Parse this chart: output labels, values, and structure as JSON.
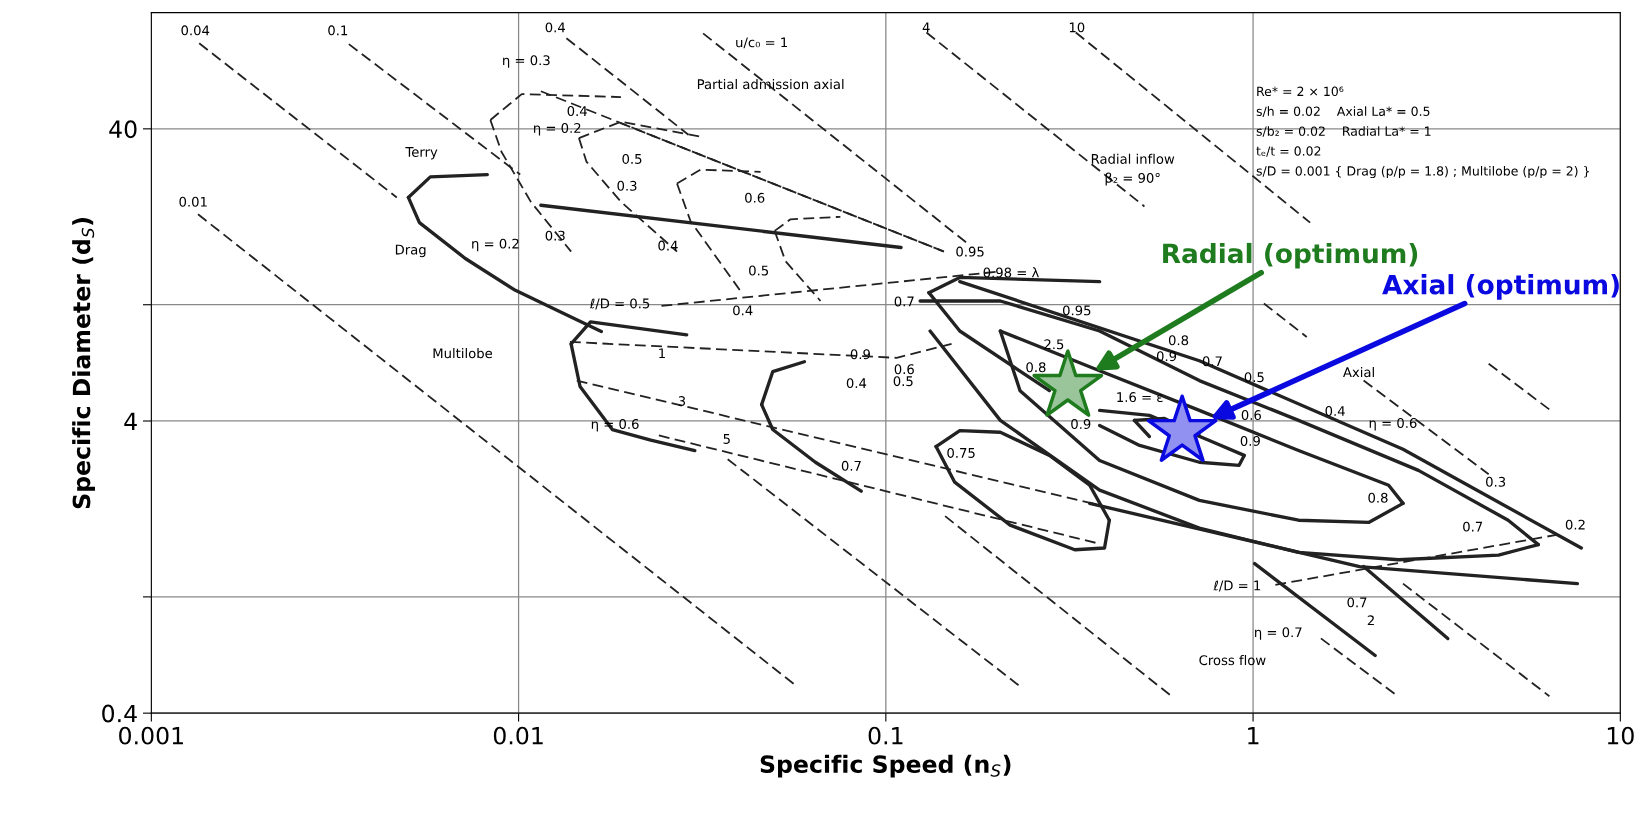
{
  "chart_data": {
    "type": "line",
    "xlabel": "Specific Speed (n$_{S}$)",
    "ylabel": "Specific Diameter (d$_{S}$)",
    "log": "xy",
    "xlim": [
      0.001,
      10
    ],
    "ylim": [
      0.4,
      100
    ],
    "xticks": [
      0.001,
      0.01,
      0.1,
      1,
      10
    ],
    "yticks": [
      0.4,
      {
        "value": 1,
        "label": null
      },
      4,
      {
        "value": 10,
        "label": null
      },
      40
    ],
    "grid": true,
    "legend": false,
    "series": [
      {
        "line_style": "dashed",
        "color": "#222222",
        "x": [
          0.00134,
          0.0568
        ],
        "values": [
          20.4,
          0.498
        ]
      },
      {
        "line_style": "dashed",
        "color": "#222222",
        "x": [
          0.00135,
          0.00466
        ],
        "values": [
          78.5,
          23.3
        ]
      },
      {
        "line_style": "dashed",
        "color": "#222222",
        "x": [
          0.0371,
          0.232
        ],
        "values": [
          2.96,
          0.494
        ]
      },
      {
        "line_style": "dashed",
        "color": "#222222",
        "x": [
          0.00345,
          0.0101
        ],
        "values": [
          78,
          27.9
        ]
      },
      {
        "line_style": "dashed",
        "color": "#222222",
        "x": [
          0.145,
          0.6
        ],
        "values": [
          1.89,
          0.457
        ]
      },
      {
        "line_style": "dashed",
        "color": "#222222",
        "x": [
          0.0135,
          0.029
        ],
        "values": [
          81.7,
          38.2
        ]
      },
      {
        "line_style": "dashed",
        "color": "#222222",
        "x": [
          1.53,
          2.48
        ],
        "values": [
          0.721,
          0.457
        ]
      },
      {
        "line_style": "dashed",
        "color": "#222222",
        "x": [
          0.0318,
          0.168
        ],
        "values": [
          84.9,
          16.1
        ]
      },
      {
        "line_style": "dashed",
        "color": "#222222",
        "x": [
          2.56,
          6.41
        ],
        "values": [
          1.11,
          0.457
        ]
      },
      {
        "line_style": "dashed",
        "color": "#222222",
        "x": [
          0.129,
          0.506
        ],
        "values": [
          85.5,
          21.7
        ]
      },
      {
        "line_style": "dashed",
        "color": "#222222",
        "x": [
          1.07,
          1.4
        ],
        "values": [
          10.1,
          7.76
        ]
      },
      {
        "line_style": "dashed",
        "color": "#222222",
        "x": [
          2.0,
          4.38
        ],
        "values": [
          5.5,
          2.63
        ]
      },
      {
        "line_style": "dashed",
        "color": "#222222",
        "x": [
          0.329,
          1.43
        ],
        "values": [
          85.5,
          19.1
        ]
      },
      {
        "line_style": "dashed",
        "color": "#222222",
        "x": [
          4.38,
          6.41
        ],
        "values": [
          6.28,
          4.38
        ]
      },
      {
        "line_style": "solid",
        "color": "#222222",
        "x": [
          1.01,
          2.15
        ],
        "values": [
          1.3,
          0.63
        ]
      },
      {
        "line_style": "solid",
        "color": "#222222",
        "x": [
          2.0,
          3.39
        ],
        "values": [
          1.27,
          0.72
        ]
      },
      {
        "line_style": "solid",
        "color": "#222222",
        "x": [
          0.00501,
          0.00575,
          0.00822
        ],
        "values": [
          23.3,
          27.4,
          27.9
        ]
      },
      {
        "line_style": "solid",
        "color": "#222222",
        "x": [
          0.00501,
          0.00537,
          0.00716,
          0.0098,
          0.0131,
          0.0168
        ],
        "values": [
          23.3,
          19.1,
          14.4,
          11.2,
          9.4,
          8.1
        ]
      },
      {
        "line_style": "solid",
        "color": "#222222",
        "x": [
          0.0139,
          0.0157,
          0.0287
        ],
        "values": [
          7.35,
          8.73,
          7.89
        ]
      },
      {
        "line_style": "solid",
        "color": "#222222",
        "x": [
          0.0139,
          0.0147,
          0.018,
          0.0229,
          0.0302
        ],
        "values": [
          7.35,
          5.25,
          3.74,
          3.44,
          3.17
        ]
      },
      {
        "line_style": "solid",
        "color": "#222222",
        "x": [
          0.0459,
          0.0492,
          0.06
        ],
        "values": [
          4.55,
          5.9,
          6.38
        ]
      },
      {
        "line_style": "solid",
        "color": "#222222",
        "x": [
          0.0459,
          0.0492,
          0.0643,
          0.0857
        ],
        "values": [
          4.55,
          3.74,
          2.89,
          2.3
        ]
      },
      {
        "line_style": "solid",
        "color": "#222222",
        "x": [
          0.137,
          0.159,
          0.205,
          0.279,
          0.359,
          0.406
        ],
        "values": [
          3.27,
          3.71,
          3.66,
          3.05,
          2.41,
          1.83
        ]
      },
      {
        "line_style": "solid",
        "color": "#222222",
        "x": [
          0.137,
          0.154,
          0.218,
          0.327,
          0.394,
          0.406
        ],
        "values": [
          3.27,
          2.47,
          1.76,
          1.45,
          1.47,
          1.83
        ]
      },
      {
        "line_style": "solid",
        "color": "#222222",
        "x": [
          0.124,
          0.205,
          0.382,
          0.714,
          1.33,
          2.82,
          4.95,
          5.98
        ],
        "values": [
          10.3,
          10.3,
          8.13,
          5.5,
          4.02,
          2.71,
          1.83,
          1.51
        ]
      },
      {
        "line_style": "solid",
        "color": "#222222",
        "x": [
          0.132,
          0.205,
          0.382,
          0.714,
          1.33,
          2.49,
          4.66,
          5.98
        ],
        "values": [
          8.13,
          4.02,
          2.32,
          1.72,
          1.42,
          1.34,
          1.39,
          1.51
        ]
      },
      {
        "line_style": "solid",
        "color": "#222222",
        "x": [
          0.205,
          0.382,
          0.714,
          1.33,
          2.34,
          2.56
        ],
        "values": [
          8.13,
          5.94,
          4.35,
          3.17,
          2.41,
          2.09
        ]
      },
      {
        "line_style": "solid",
        "color": "#222222",
        "x": [
          0.205,
          0.232,
          0.382,
          0.714,
          1.33,
          2.07,
          2.56
        ],
        "values": [
          8.13,
          5.08,
          2.93,
          2.14,
          1.83,
          1.8,
          2.09
        ]
      },
      {
        "line_style": "solid",
        "color": "#222222",
        "x": [
          0.382,
          0.522,
          0.76,
          0.946
        ],
        "values": [
          4.35,
          4.18,
          3.43,
          3.05
        ]
      },
      {
        "line_style": "solid",
        "color": "#222222",
        "x": [
          0.382,
          0.491,
          0.714,
          0.916,
          0.946
        ],
        "values": [
          3.86,
          3.3,
          2.89,
          2.82,
          3.05
        ]
      },
      {
        "line_style": "solid",
        "color": "#222222",
        "x": [
          0.475,
          0.574,
          0.714
        ],
        "values": [
          4.02,
          4.08,
          3.57
        ]
      },
      {
        "line_style": "solid",
        "color": "#222222",
        "x": [
          0.475,
          0.522
        ],
        "values": [
          4.02,
          3.54
        ]
      },
      {
        "line_style": "solid",
        "color": "#222222",
        "x": [
          0.159,
          0.714,
          2.56,
          7.83
        ],
        "values": [
          12.0,
          6.43,
          3.2,
          1.47
        ]
      },
      {
        "line_style": "solid",
        "color": "#222222",
        "x": [
          0.359,
          1.95,
          7.64
        ],
        "values": [
          2.09,
          1.27,
          1.11
        ]
      },
      {
        "line_style": "dashed",
        "color": "#222222",
        "x": [
          0.0115,
          0.144
        ],
        "values": [
          53.8,
          15.2
        ]
      },
      {
        "line_style": "dashed",
        "color": "#222222",
        "x": [
          0.0189,
          0.144
        ],
        "values": [
          41.9,
          15.2
        ]
      },
      {
        "line_style": "solid",
        "color": "#222222",
        "x": [
          0.0115,
          0.11
        ],
        "values": [
          21.9,
          15.7
        ]
      },
      {
        "line_style": "dashed",
        "color": "#222222",
        "x": [
          0.0245,
          0.205
        ],
        "values": [
          9.91,
          13.0
        ]
      },
      {
        "line_style": "dashed",
        "color": "#222222",
        "x": [
          0.0138,
          0.107,
          0.151
        ],
        "values": [
          7.46,
          6.58,
          7.35
        ]
      },
      {
        "line_style": "dashed",
        "color": "#222222",
        "x": [
          0.0144,
          0.382
        ],
        "values": [
          5.5,
          2.06
        ]
      },
      {
        "line_style": "dashed",
        "color": "#222222",
        "x": [
          0.0241,
          0.382
        ],
        "values": [
          3.57,
          1.52
        ]
      },
      {
        "line_style": "dashed",
        "color": "#222222",
        "x": [
          1.15,
          6.7
        ],
        "values": [
          1.1,
          1.63
        ]
      },
      {
        "line_style": "dashed",
        "color": "#222222",
        "x": [
          0.0146,
          0.019,
          0.0313
        ],
        "values": [
          37.2,
          42.3,
          37.6
        ]
      },
      {
        "line_style": "dashed",
        "color": "#222222",
        "x": [
          0.0146,
          0.0153,
          0.019,
          0.027
        ],
        "values": [
          37.2,
          30.9,
          22.5,
          15.2
        ]
      },
      {
        "line_style": "dashed",
        "color": "#222222",
        "x": [
          0.00838,
          0.0102,
          0.019
        ],
        "values": [
          42.9,
          52.6,
          51.4
        ]
      },
      {
        "line_style": "dashed",
        "color": "#222222",
        "x": [
          0.00838,
          0.00898,
          0.0108,
          0.0139
        ],
        "values": [
          42.9,
          33.4,
          22.5,
          15.2
        ]
      },
      {
        "line_style": "dashed",
        "color": "#222222",
        "x": [
          0.027,
          0.0313,
          0.0456
        ],
        "values": [
          26.0,
          29.0,
          28.5
        ]
      },
      {
        "line_style": "dashed",
        "color": "#222222",
        "x": [
          0.027,
          0.0294,
          0.0403
        ],
        "values": [
          26.0,
          19.3,
          11.1
        ]
      },
      {
        "line_style": "dashed",
        "color": "#222222",
        "x": [
          0.0498,
          0.055,
          0.0752
        ],
        "values": [
          17.9,
          19.6,
          20.0
        ]
      },
      {
        "line_style": "dashed",
        "color": "#222222",
        "x": [
          0.0498,
          0.0533,
          0.0664
        ],
        "values": [
          17.9,
          14.1,
          10.3
        ]
      },
      {
        "line_style": "solid",
        "color": "#222222",
        "x": [
          0.131,
          0.159,
          0.382
        ],
        "values": [
          11.0,
          12.4,
          12.0
        ]
      },
      {
        "line_style": "solid",
        "color": "#222222",
        "x": [
          0.131,
          0.159,
          0.279
        ],
        "values": [
          11.0,
          8.13,
          5.08
        ]
      },
      {
        "type": "scatter",
        "marker": "star",
        "name": "Radial (optimum)",
        "color": "#1e7b1e",
        "x": [
          0.313
        ],
        "values": [
          5.25
        ]
      },
      {
        "type": "scatter",
        "marker": "star",
        "name": "Axial (optimum)",
        "color": "#0a0ae0",
        "x": [
          0.641
        ],
        "values": [
          3.68
        ]
      }
    ],
    "annotations": [
      "Re* = 2 × 10⁶",
      "s/h = 0.02    Axial La* = 0.5",
      "s/b₂ = 0.02    Radial La* = 1",
      "tₑ/t = 0.02",
      "s/D = 0.001 { Drag (p/p = 1.8) ; Multilobe (p/p = 2) }",
      "0.04",
      "0.1",
      "0.01",
      "0.4",
      "u/c₀ = 1",
      "4",
      "10",
      "Partial admission axial",
      "Terry",
      "Drag",
      "Multilobe",
      "η = 0.2",
      "η = 0.2",
      "η = 0.3",
      "0.4",
      "0.5",
      "0.3",
      "0.6",
      "0.3",
      "0.4",
      "0.95",
      "0.5",
      "0.98 = λ",
      "ℓ/D = 0.5",
      "0.4",
      "0.7",
      "0.95",
      "1",
      "0.9",
      "2.5",
      "0.6",
      "0.8",
      "0.4",
      "0.5",
      "3",
      "η = 0.6",
      "5",
      "0.7",
      "0.75",
      "Radial inflow",
      "β₂ = 90°",
      "0.8",
      "0.9",
      "0.7",
      "1.6 = ε",
      "0.9",
      "0.5",
      "0.6",
      "0.9",
      "Axial",
      "0.4",
      "η = 0.6",
      "0.3",
      "0.8",
      "0.7",
      "0.2",
      "ℓ/D = 1",
      "0.7",
      "2",
      "η = 0.7",
      "Cross flow"
    ]
  }
}
